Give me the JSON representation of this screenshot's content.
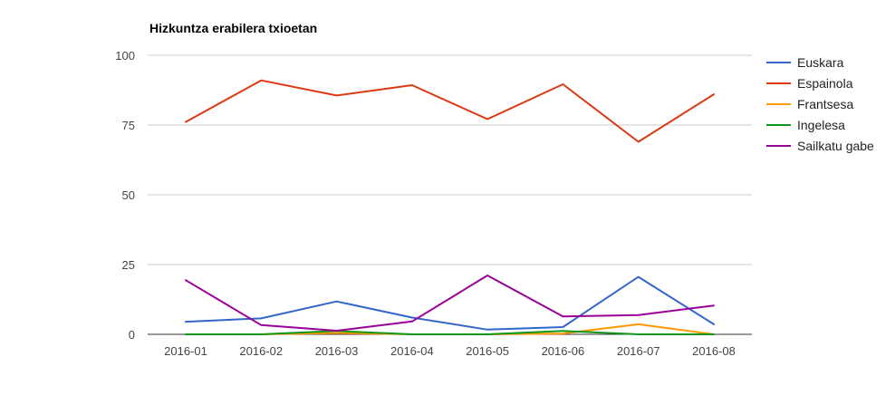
{
  "chart_data": {
    "type": "line",
    "title": "Hizkuntza erabilera txioetan",
    "xlabel": "",
    "ylabel": "",
    "categories": [
      "2016-01",
      "2016-02",
      "2016-03",
      "2016-04",
      "2016-05",
      "2016-06",
      "2016-07",
      "2016-08"
    ],
    "ylim": [
      0,
      100
    ],
    "yticks": [
      0,
      25,
      50,
      75,
      100
    ],
    "grid": true,
    "legend_position": "right",
    "series": [
      {
        "name": "Euskara",
        "color": "#3366cc",
        "values": [
          4.5,
          5.7,
          11.8,
          6.0,
          1.7,
          2.6,
          20.6,
          3.6
        ]
      },
      {
        "name": "Espainola",
        "color": "#dc3912",
        "values": [
          76.1,
          91.0,
          85.6,
          89.3,
          77.1,
          89.6,
          69.0,
          86.0
        ]
      },
      {
        "name": "Frantsesa",
        "color": "#ff9900",
        "values": [
          0.0,
          0.0,
          0.5,
          0.0,
          0.0,
          0.3,
          3.6,
          0.0
        ]
      },
      {
        "name": "Ingelesa",
        "color": "#109618",
        "values": [
          0.0,
          0.0,
          1.2,
          0.0,
          0.0,
          1.2,
          0.0,
          0.0
        ]
      },
      {
        "name": "Sailkatu gabe",
        "color": "#990099",
        "values": [
          19.4,
          3.3,
          1.3,
          4.6,
          21.1,
          6.4,
          6.9,
          10.3
        ]
      }
    ]
  }
}
